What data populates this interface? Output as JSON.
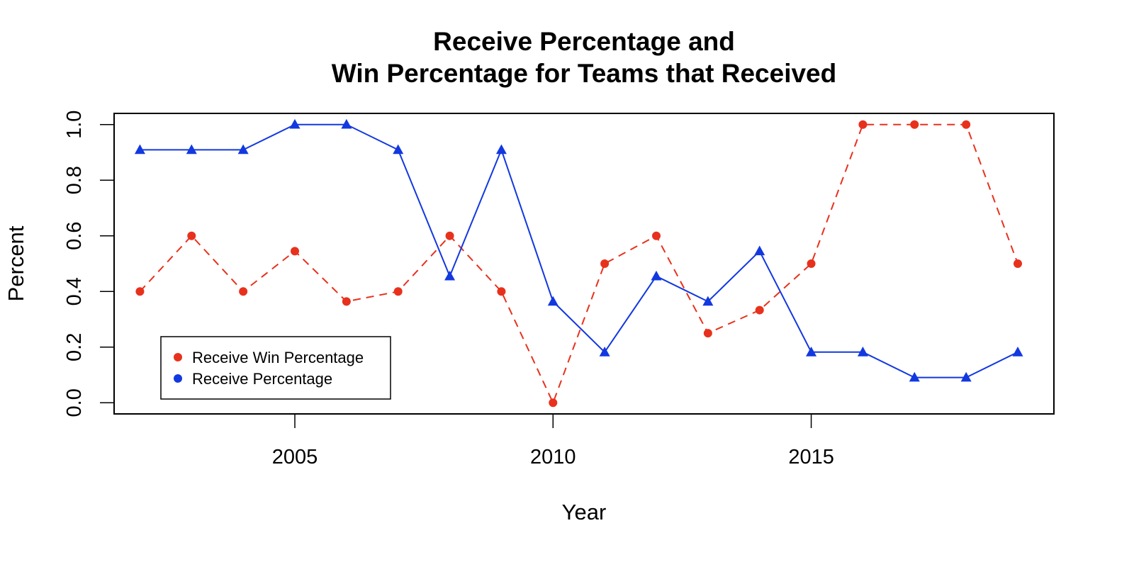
{
  "chart_data": {
    "type": "line",
    "title_lines": [
      "Receive Percentage and",
      "Win Percentage for Teams that Received"
    ],
    "xlabel": "Year",
    "ylabel": "Percent",
    "xlim": [
      2001.5,
      2019.7
    ],
    "ylim": [
      -0.04,
      1.04
    ],
    "x_ticks": [
      2005,
      2010,
      2015
    ],
    "x_tick_labels": [
      "2005",
      "2010",
      "2015"
    ],
    "y_ticks": [
      0.0,
      0.2,
      0.4,
      0.6,
      0.8,
      1.0
    ],
    "y_tick_labels": [
      "0.0",
      "0.2",
      "0.4",
      "0.6",
      "0.8",
      "1.0"
    ],
    "grid": false,
    "legend_position": "bottom-left",
    "x": [
      2002,
      2003,
      2004,
      2005,
      2006,
      2007,
      2008,
      2009,
      2010,
      2011,
      2012,
      2013,
      2014,
      2015,
      2016,
      2017,
      2018,
      2019
    ],
    "series": [
      {
        "name": "Receive Win Percentage",
        "color": "#e8311d",
        "line_style": "dashed",
        "marker": "circle",
        "values": [
          0.4,
          0.6,
          0.4,
          0.545,
          0.364,
          0.4,
          0.6,
          0.4,
          0.0,
          0.5,
          0.6,
          0.25,
          0.333,
          0.5,
          1.0,
          1.0,
          1.0,
          0.5
        ]
      },
      {
        "name": "Receive Percentage",
        "color": "#1238e0",
        "line_style": "solid",
        "marker": "triangle",
        "values": [
          0.909,
          0.909,
          0.909,
          1.0,
          1.0,
          0.909,
          0.455,
          0.909,
          0.364,
          0.182,
          0.455,
          0.364,
          0.545,
          0.182,
          0.182,
          0.091,
          0.091,
          0.182
        ]
      }
    ]
  }
}
